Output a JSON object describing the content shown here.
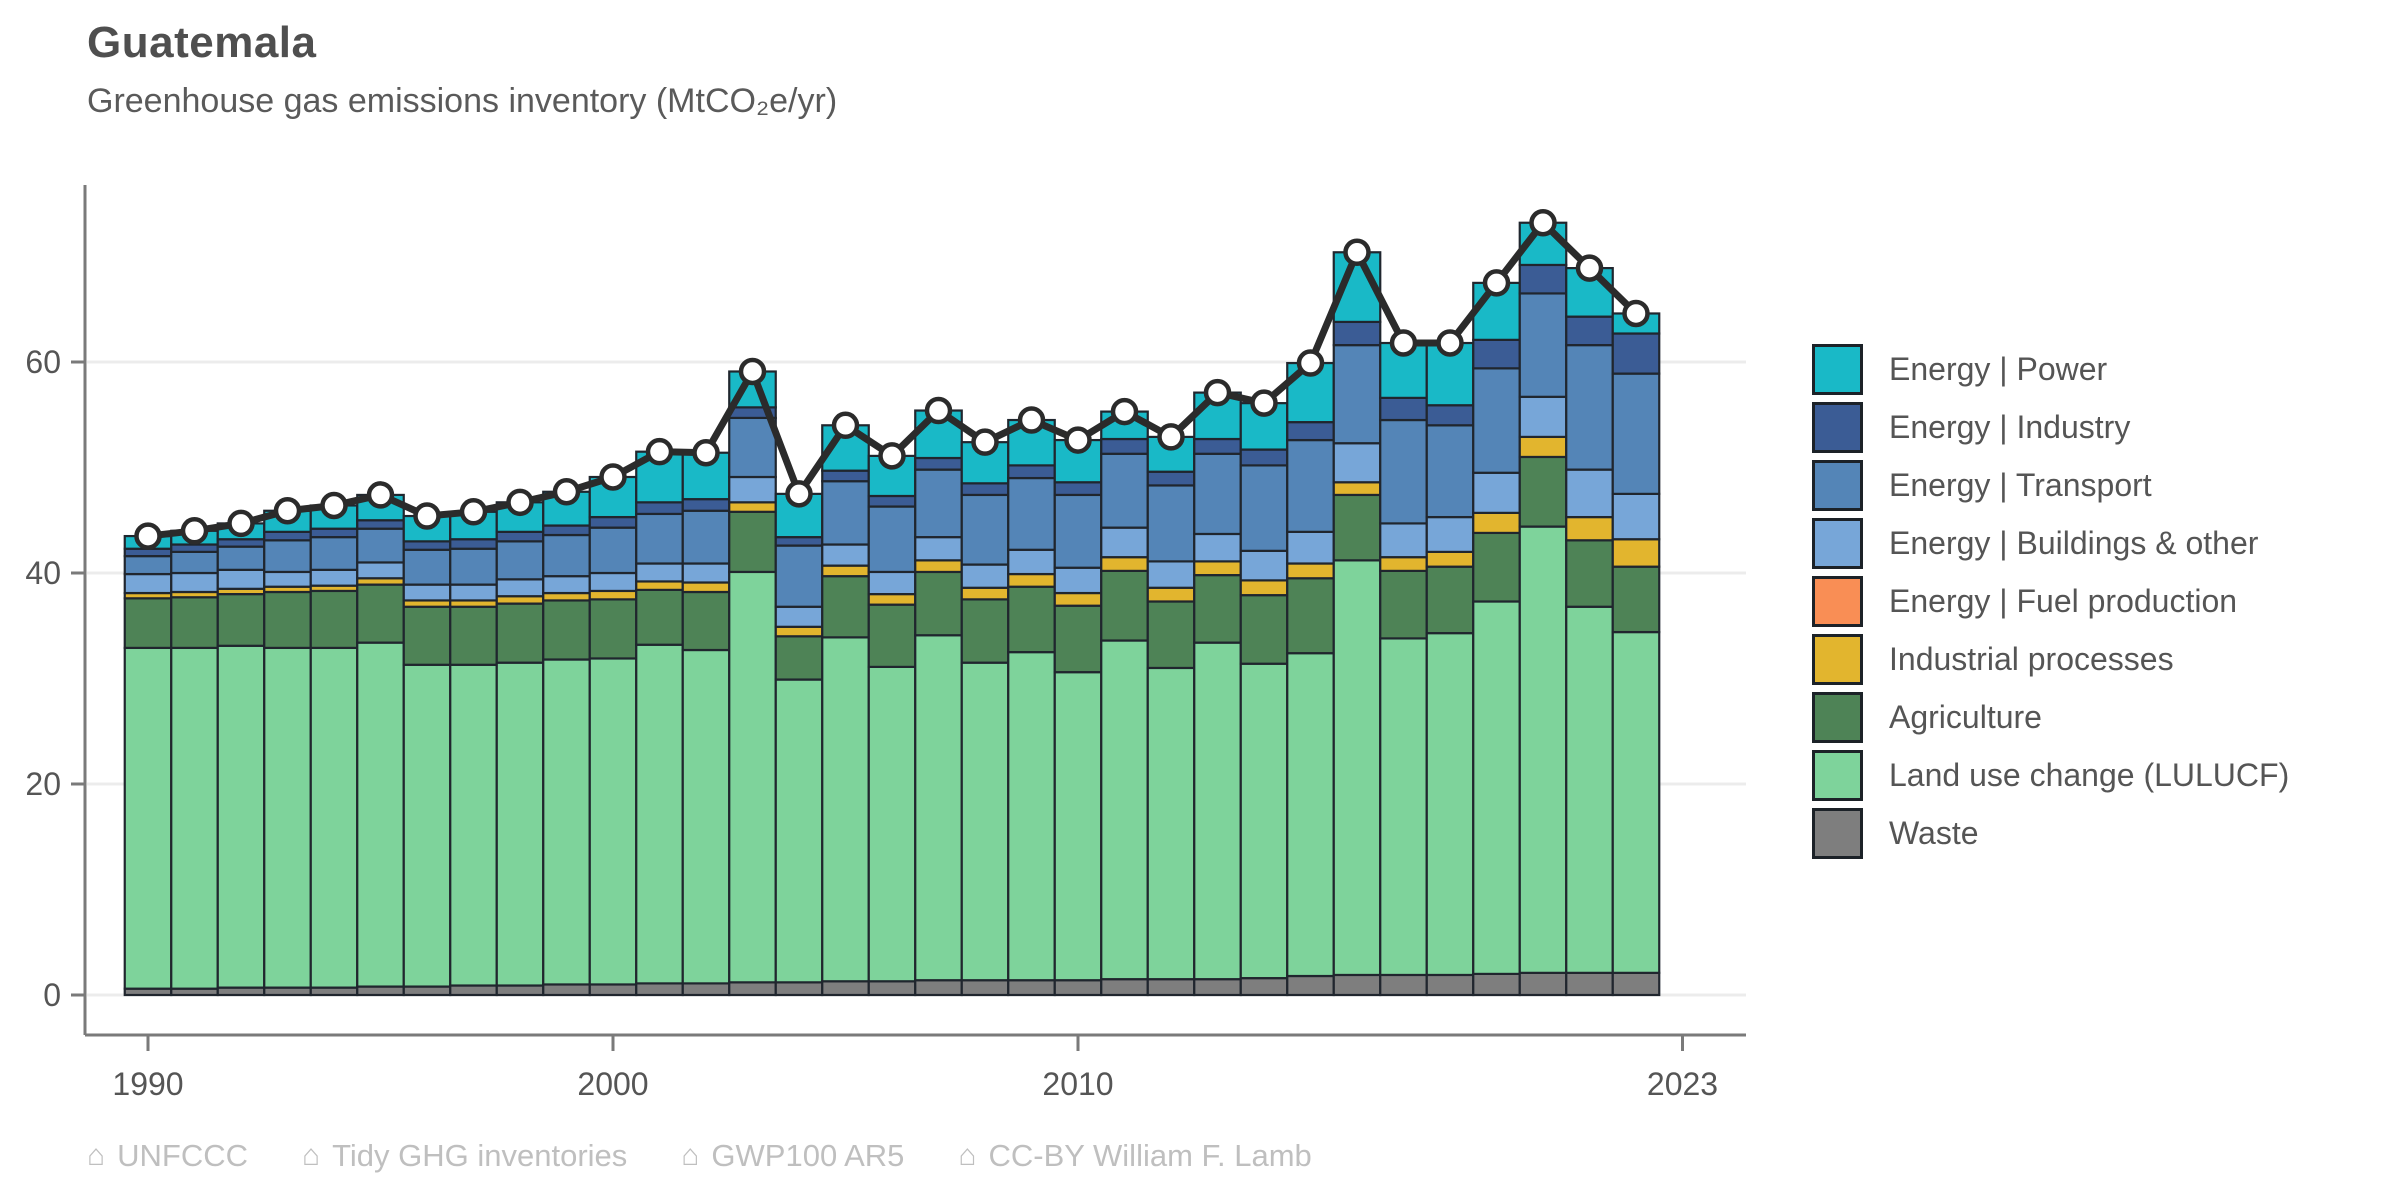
{
  "chart_data": {
    "type": "bar",
    "subtype": "stacked-bars-with-total-line",
    "title": "Guatemala",
    "subtitle": "Greenhouse gas emissions inventory (MtCO₂e/yr)",
    "ylabel": "",
    "xlabel": "",
    "ylim": [
      0,
      76
    ],
    "grid": true,
    "legend_position": "right",
    "years": [
      1990,
      1991,
      1992,
      1993,
      1994,
      1995,
      1996,
      1997,
      1998,
      1999,
      2000,
      2001,
      2002,
      2003,
      2004,
      2005,
      2006,
      2007,
      2008,
      2009,
      2010,
      2011,
      2012,
      2013,
      2014,
      2015,
      2016,
      2017,
      2018,
      2019,
      2020,
      2021,
      2022
    ],
    "x_tick_labels": [
      {
        "year": 1990,
        "label": "1990"
      },
      {
        "year": 2000,
        "label": "2000"
      },
      {
        "year": 2010,
        "label": "2010"
      },
      {
        "year": 2023,
        "label": "2023"
      }
    ],
    "y_ticks": [
      0,
      20,
      40,
      60
    ],
    "series": [
      {
        "name": "Energy | Power",
        "color": "#19b9c7",
        "values": [
          1.2,
          1.3,
          1.5,
          2.0,
          2.2,
          2.4,
          2.4,
          2.6,
          2.8,
          3.2,
          3.8,
          4.8,
          4.4,
          3.4,
          4.1,
          4.3,
          3.8,
          4.5,
          3.9,
          4.3,
          4.0,
          2.6,
          3.3,
          4.4,
          4.4,
          5.6,
          6.6,
          5.2,
          5.9,
          5.4,
          4.0,
          4.6,
          1.9
        ]
      },
      {
        "name": "Energy | Industry",
        "color": "#3b5c95",
        "values": [
          0.7,
          0.7,
          0.7,
          0.8,
          0.8,
          0.8,
          0.8,
          0.9,
          0.9,
          0.9,
          1.0,
          1.1,
          1.1,
          1.0,
          0.8,
          1.0,
          1.0,
          1.1,
          1.1,
          1.2,
          1.2,
          1.4,
          1.3,
          1.4,
          1.5,
          1.7,
          2.2,
          2.1,
          1.9,
          2.7,
          2.7,
          2.7,
          3.8
        ]
      },
      {
        "name": "Energy | Transport",
        "color": "#5485b7",
        "values": [
          1.7,
          2.0,
          2.2,
          3.0,
          3.1,
          3.2,
          3.3,
          3.4,
          3.6,
          3.9,
          4.3,
          4.7,
          5.0,
          5.6,
          5.8,
          6.0,
          6.2,
          6.4,
          6.6,
          6.8,
          6.9,
          7.0,
          7.2,
          7.6,
          8.1,
          8.7,
          9.3,
          9.8,
          8.7,
          9.9,
          9.8,
          11.8,
          11.4
        ]
      },
      {
        "name": "Energy | Buildings & other",
        "color": "#77a6d8",
        "values": [
          1.8,
          1.8,
          1.8,
          1.4,
          1.5,
          1.5,
          1.5,
          1.5,
          1.6,
          1.6,
          1.7,
          1.7,
          1.8,
          2.4,
          1.9,
          2.0,
          2.1,
          2.2,
          2.2,
          2.3,
          2.4,
          2.8,
          2.5,
          2.6,
          2.8,
          3.0,
          3.7,
          3.2,
          3.3,
          3.8,
          3.8,
          4.5,
          4.3
        ]
      },
      {
        "name": "Energy | Fuel production",
        "color": "#f98e55",
        "values": [
          0,
          0,
          0,
          0,
          0,
          0,
          0,
          0,
          0,
          0,
          0,
          0,
          0,
          0,
          0,
          0,
          0,
          0,
          0,
          0,
          0,
          0,
          0,
          0,
          0,
          0,
          0,
          0,
          0,
          0,
          0,
          0,
          0
        ]
      },
      {
        "name": "Industrial processes",
        "color": "#e2b52e",
        "values": [
          0.5,
          0.5,
          0.5,
          0.5,
          0.5,
          0.6,
          0.6,
          0.6,
          0.7,
          0.7,
          0.8,
          0.8,
          0.9,
          0.9,
          0.9,
          1.0,
          1.0,
          1.1,
          1.1,
          1.2,
          1.2,
          1.3,
          1.3,
          1.3,
          1.4,
          1.4,
          1.2,
          1.3,
          1.4,
          1.9,
          1.9,
          2.2,
          2.6
        ]
      },
      {
        "name": "Agriculture",
        "color": "#4e8356",
        "values": [
          4.7,
          4.8,
          4.9,
          5.3,
          5.4,
          5.5,
          5.5,
          5.5,
          5.6,
          5.6,
          5.6,
          5.2,
          5.5,
          5.7,
          4.1,
          5.8,
          5.9,
          6.0,
          6.0,
          6.2,
          6.3,
          6.6,
          6.3,
          6.4,
          6.5,
          7.1,
          6.2,
          6.4,
          6.3,
          6.5,
          6.6,
          6.3,
          6.2
        ]
      },
      {
        "name": "Land use change (LULUCF)",
        "color": "#7ed39b",
        "values": [
          32.3,
          32.3,
          32.4,
          32.2,
          32.2,
          32.6,
          30.5,
          30.4,
          30.6,
          30.8,
          30.9,
          32.1,
          31.6,
          38.9,
          28.7,
          32.6,
          29.8,
          32.7,
          30.1,
          31.1,
          29.2,
          32.1,
          29.5,
          31.9,
          29.8,
          30.6,
          39.3,
          31.9,
          32.4,
          35.3,
          42.3,
          34.7,
          32.3
        ]
      },
      {
        "name": "Waste",
        "color": "#7e7e7e",
        "values": [
          0.6,
          0.6,
          0.7,
          0.7,
          0.7,
          0.8,
          0.8,
          0.9,
          0.9,
          1.0,
          1.0,
          1.1,
          1.1,
          1.2,
          1.2,
          1.3,
          1.3,
          1.4,
          1.4,
          1.4,
          1.4,
          1.5,
          1.5,
          1.5,
          1.6,
          1.8,
          1.9,
          1.9,
          1.9,
          2.0,
          2.1,
          2.1,
          2.1
        ]
      }
    ],
    "total_line": {
      "name": "Total",
      "line_color": "#2b2b2b",
      "marker": "white-circle",
      "totals": [
        43.5,
        44.0,
        44.7,
        45.9,
        46.4,
        47.4,
        45.4,
        45.8,
        46.7,
        47.7,
        49.1,
        51.5,
        51.4,
        59.1,
        47.5,
        54.0,
        51.1,
        55.4,
        52.4,
        54.5,
        52.6,
        55.3,
        52.9,
        57.1,
        56.1,
        59.9,
        70.4,
        61.8,
        61.8,
        67.5,
        73.2,
        68.9,
        64.6
      ]
    },
    "bar_outline_color": "#20262e",
    "axis_color": "#7a7a7a",
    "grid_color": "#ececec"
  },
  "footer": {
    "items": [
      {
        "icon": "house-icon",
        "label": "UNFCCC"
      },
      {
        "icon": "house-icon",
        "label": "Tidy GHG inventories"
      },
      {
        "icon": "house-icon",
        "label": "GWP100 AR5"
      },
      {
        "icon": "house-icon",
        "label": "CC-BY William F. Lamb"
      }
    ]
  }
}
